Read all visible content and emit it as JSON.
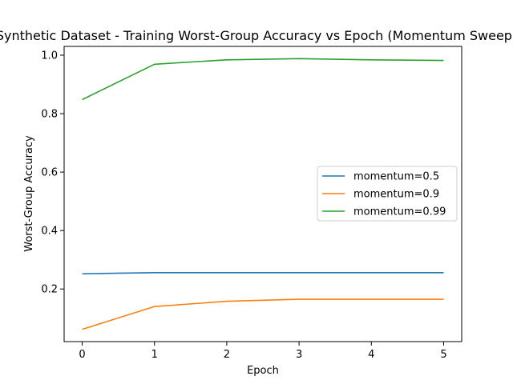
{
  "chart_data": {
    "type": "line",
    "title": "Synthetic Dataset - Training Worst-Group Accuracy vs Epoch (Momentum Sweep)",
    "xlabel": "Epoch",
    "ylabel": "Worst-Group Accuracy",
    "x": [
      0,
      1,
      2,
      3,
      4,
      5
    ],
    "xlim": [
      -0.25,
      5.25
    ],
    "ylim": [
      0.02,
      1.03
    ],
    "xticks": [
      "0",
      "1",
      "2",
      "3",
      "4",
      "5"
    ],
    "yticks": [
      "0.2",
      "0.4",
      "0.6",
      "0.8",
      "1.0"
    ],
    "grid": false,
    "legend_position": "center-right",
    "series": [
      {
        "name": "momentum=0.5",
        "color": "#1f77b4",
        "values": [
          0.252,
          0.256,
          0.256,
          0.256,
          0.256,
          0.256
        ]
      },
      {
        "name": "momentum=0.9",
        "color": "#ff7f0e",
        "values": [
          0.062,
          0.14,
          0.158,
          0.165,
          0.165,
          0.165
        ]
      },
      {
        "name": "momentum=0.99",
        "color": "#2ca02c",
        "values": [
          0.848,
          0.969,
          0.984,
          0.988,
          0.984,
          0.982
        ]
      }
    ]
  }
}
